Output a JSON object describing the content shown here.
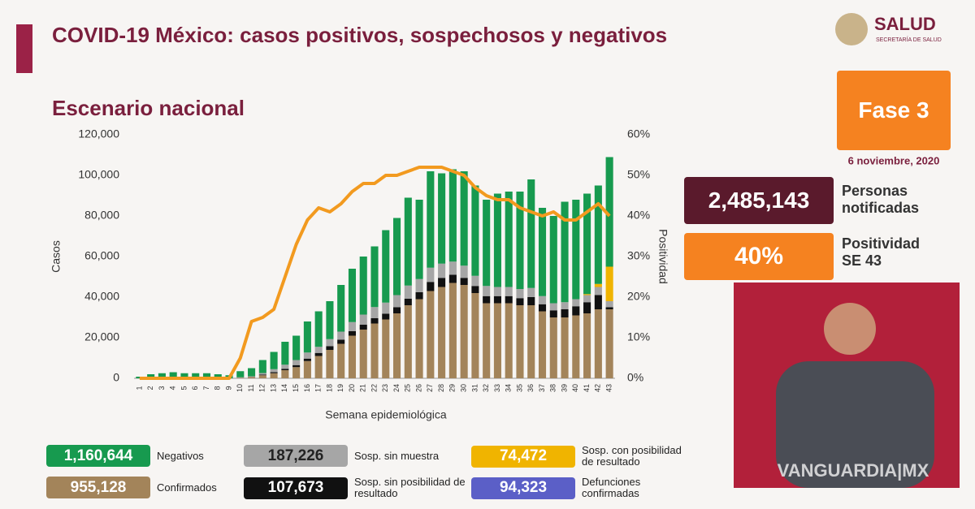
{
  "header": {
    "title": "COVID-19 México: casos positivos, sospechosos y negativos",
    "subtitle": "Escenario nacional",
    "logo": "SALUD",
    "logo_sub": "SECRETARÍA DE SALUD"
  },
  "side": {
    "phase": "Fase 3",
    "date": "6 noviembre, 2020",
    "notified_value": "2,485,143",
    "notified_label": "Personas notificadas",
    "positivity_value": "40%",
    "positivity_label": "Positividad SE 43"
  },
  "watermark": "VANGUARDIA|MX",
  "chart_data": {
    "type": "bar",
    "stacked": true,
    "xlabel": "Semana epidemiológica",
    "ylabel": "Casos",
    "y2label": "Positividad",
    "categories": [
      "1",
      "2",
      "3",
      "4",
      "5",
      "6",
      "7",
      "8",
      "9",
      "10",
      "11",
      "12",
      "13",
      "14",
      "15",
      "16",
      "17",
      "18",
      "19",
      "20",
      "21",
      "22",
      "23",
      "24",
      "25",
      "26",
      "27",
      "28",
      "29",
      "30",
      "31",
      "32",
      "33",
      "34",
      "35",
      "36",
      "37",
      "38",
      "39",
      "40",
      "41",
      "42",
      "43"
    ],
    "ylim": [
      0,
      120000
    ],
    "yticks": [
      0,
      {
        "value": 20000,
        "label": "20,000"
      },
      {
        "value": 40000,
        "label": "40,000"
      },
      {
        "value": 60000,
        "label": "60,000"
      },
      {
        "value": 80000,
        "label": "80,000"
      },
      {
        "value": 100000,
        "label": "100,000"
      },
      {
        "value": 120000,
        "label": "120,000"
      }
    ],
    "y2lim": [
      0,
      60
    ],
    "y2ticks": [
      {
        "value": 0,
        "label": "0%"
      },
      {
        "value": 10,
        "label": "10%"
      },
      {
        "value": 20,
        "label": "20%"
      },
      {
        "value": 30,
        "label": "30%"
      },
      {
        "value": 40,
        "label": "40%"
      },
      {
        "value": 50,
        "label": "50%"
      },
      {
        "value": 60,
        "label": "60%"
      }
    ],
    "series": [
      {
        "name": "Confirmados",
        "total": "955,128",
        "color": "#a3845a",
        "values": [
          0,
          0,
          0,
          0,
          0,
          0,
          0,
          0,
          0,
          300,
          600,
          1500,
          2500,
          4000,
          5500,
          8500,
          11000,
          14000,
          17000,
          21000,
          24000,
          27000,
          29000,
          32000,
          36000,
          39000,
          43000,
          45000,
          47000,
          46000,
          42000,
          37000,
          37000,
          37000,
          36000,
          36000,
          33000,
          30000,
          30000,
          31000,
          32000,
          34000,
          34000
        ]
      },
      {
        "name": "Sosp. sin posibilidad de resultado",
        "total": "107,673",
        "color": "#111111",
        "values": [
          0,
          0,
          0,
          0,
          0,
          0,
          0,
          0,
          0,
          0,
          0,
          300,
          500,
          700,
          1000,
          1200,
          1500,
          1800,
          2000,
          2200,
          2400,
          2600,
          2800,
          3000,
          3200,
          3400,
          4500,
          4500,
          4000,
          3500,
          3500,
          3500,
          3500,
          3500,
          3500,
          4000,
          3500,
          3500,
          4000,
          4500,
          5500,
          7000,
          1000
        ]
      },
      {
        "name": "Sosp. sin muestra",
        "total": "187,226",
        "color": "#a6a6a6",
        "values": [
          0,
          0,
          0,
          0,
          0,
          0,
          0,
          0,
          0,
          200,
          400,
          800,
          1500,
          2000,
          2500,
          3000,
          3000,
          3500,
          4000,
          4500,
          5000,
          5500,
          5500,
          6000,
          6500,
          6500,
          7000,
          7000,
          6500,
          6000,
          5000,
          5000,
          4500,
          4500,
          4500,
          4500,
          4000,
          3500,
          3500,
          3500,
          3500,
          4000,
          3000
        ]
      },
      {
        "name": "Sosp. con posibilidad de resultado",
        "total": "74,472",
        "color": "#f0b400",
        "values": [
          0,
          0,
          0,
          0,
          0,
          0,
          0,
          0,
          0,
          0,
          0,
          0,
          0,
          0,
          0,
          0,
          0,
          0,
          0,
          0,
          0,
          0,
          0,
          0,
          0,
          0,
          0,
          0,
          0,
          0,
          0,
          0,
          0,
          0,
          0,
          0,
          0,
          0,
          0,
          0,
          500,
          1500,
          17000
        ]
      },
      {
        "name": "Negativos",
        "total": "1,160,644",
        "color": "#179a4f",
        "values": [
          800,
          2000,
          2500,
          3000,
          2500,
          2500,
          2500,
          2000,
          1500,
          3000,
          4000,
          6400,
          8500,
          11300,
          12000,
          15300,
          17500,
          18700,
          23000,
          26300,
          28600,
          29900,
          35700,
          38000,
          43300,
          39100,
          47500,
          44500,
          45500,
          46500,
          44500,
          42500,
          46000,
          47000,
          48000,
          53500,
          43500,
          43000,
          49500,
          49000,
          49500,
          48500,
          54000
        ]
      },
      {
        "type": "line",
        "axis": "y2",
        "color": "#f29a1f",
        "values": [
          0,
          0,
          0,
          0,
          0,
          0,
          0,
          0,
          0,
          5,
          14,
          15,
          17,
          25,
          33,
          39,
          42,
          41,
          43,
          46,
          48,
          48,
          50,
          50,
          51,
          52,
          52,
          52,
          51,
          50,
          47,
          45,
          44,
          44,
          42,
          41,
          40,
          41,
          39,
          39,
          41,
          43,
          40
        ]
      }
    ],
    "extra_legend": {
      "name": "Defunciones confirmadas",
      "total": "94,323",
      "color": "#5b5fc7"
    }
  }
}
